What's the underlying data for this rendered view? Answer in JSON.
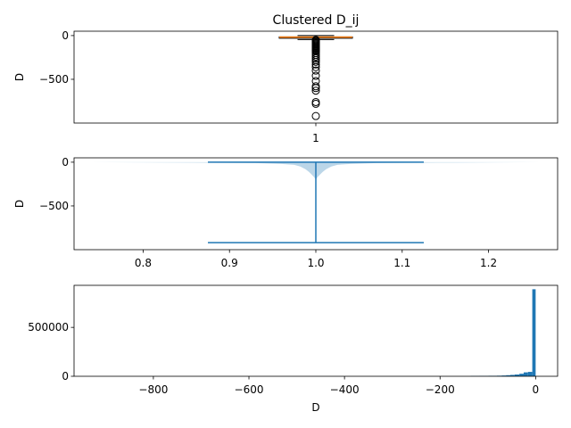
{
  "figure": {
    "title": "Clustered D_ij"
  },
  "chart_data": [
    {
      "type": "box",
      "ylabel": "D",
      "ylim": [
        -1000,
        50
      ],
      "yticks": [
        0,
        -500
      ],
      "ytick_labels": [
        "0",
        "−500"
      ],
      "xtick_labels": [
        "1"
      ],
      "box": {
        "q1": -22,
        "median": -18,
        "q3": -15,
        "whisker_low": -45,
        "whisker_high": 0
      },
      "fliers": [
        -50,
        -60,
        -70,
        -80,
        -90,
        -100,
        -110,
        -120,
        -130,
        -140,
        -150,
        -160,
        -170,
        -180,
        -200,
        -220,
        -240,
        -260,
        -280,
        -300,
        -330,
        -360,
        -400,
        -460,
        -520,
        -580,
        -600,
        -630,
        -760,
        -780,
        -920
      ],
      "colors": {
        "box": "#000000",
        "median": "#ff7f0e"
      }
    },
    {
      "type": "violin",
      "ylabel": "D",
      "ylim": [
        -1000,
        50
      ],
      "xlim": [
        0.72,
        1.28
      ],
      "yticks": [
        0,
        -500
      ],
      "ytick_labels": [
        "0",
        "−500"
      ],
      "xticks": [
        0.8,
        0.9,
        1.0,
        1.1,
        1.2
      ],
      "xtick_labels": [
        "0.8",
        "0.9",
        "1.0",
        "1.1",
        "1.2"
      ],
      "min": -920,
      "max": 0,
      "center": 1.0,
      "cap_halfwidth": 0.125,
      "density": [
        [
          0,
          0.26
        ],
        [
          -5,
          0.14
        ],
        [
          -10,
          0.07
        ],
        [
          -20,
          0.04
        ],
        [
          -30,
          0.025
        ],
        [
          -50,
          0.018
        ],
        [
          -80,
          0.012
        ],
        [
          -110,
          0.008
        ],
        [
          -140,
          0.005
        ],
        [
          -170,
          0.002
        ],
        [
          -200,
          0.0
        ]
      ],
      "colors": {
        "fill": "#1f77b4",
        "lines": "#1f77b4"
      }
    },
    {
      "type": "histogram",
      "xlabel": "D",
      "xlim": [
        -966,
        46
      ],
      "ylim": [
        0,
        930000
      ],
      "xticks": [
        -800,
        -600,
        -400,
        -200,
        0
      ],
      "xtick_labels": [
        "−800",
        "−600",
        "−400",
        "−200",
        "0"
      ],
      "yticks": [
        0,
        500000
      ],
      "ytick_labels": [
        "0",
        "500000"
      ],
      "bins": [
        {
          "x0": -136,
          "x1": -127,
          "count": 3000
        },
        {
          "x0": -127,
          "x1": -118,
          "count": 3000
        },
        {
          "x0": -118,
          "x1": -108,
          "count": 4000
        },
        {
          "x0": -108,
          "x1": -99,
          "count": 4000
        },
        {
          "x0": -99,
          "x1": -90,
          "count": 5000
        },
        {
          "x0": -90,
          "x1": -81,
          "count": 5000
        },
        {
          "x0": -81,
          "x1": -71,
          "count": 6000
        },
        {
          "x0": -71,
          "x1": -62,
          "count": 8000
        },
        {
          "x0": -62,
          "x1": -53,
          "count": 11000
        },
        {
          "x0": -53,
          "x1": -44,
          "count": 14000
        },
        {
          "x0": -44,
          "x1": -34,
          "count": 18000
        },
        {
          "x0": -34,
          "x1": -25,
          "count": 26000
        },
        {
          "x0": -25,
          "x1": -16,
          "count": 40000
        },
        {
          "x0": -16,
          "x1": -7,
          "count": 45000
        },
        {
          "x0": -7,
          "x1": 0,
          "count": 890000
        }
      ],
      "colors": {
        "bar": "#1f77b4"
      }
    }
  ]
}
